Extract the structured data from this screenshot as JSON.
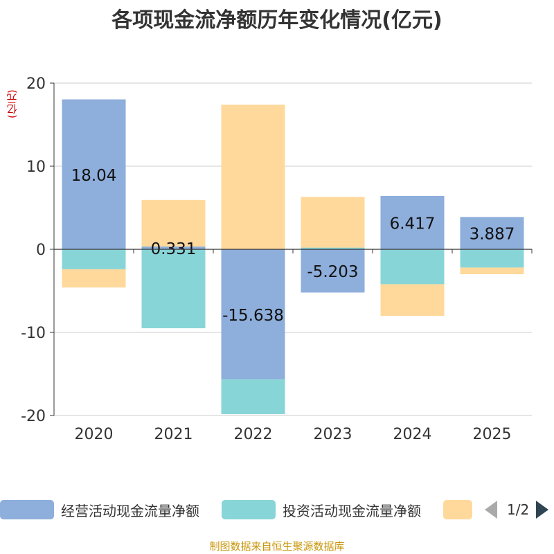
{
  "chart_data": {
    "type": "bar",
    "stacked": true,
    "title": "各项现金流净额历年变化情况(亿元)",
    "ylabel": "(亿元)",
    "ylim": [
      -20,
      20
    ],
    "yticks": [
      -20,
      -10,
      0,
      10,
      20
    ],
    "grid": true,
    "legend_position": "bottom",
    "categories": [
      "2020",
      "2021",
      "2022",
      "2023",
      "2024",
      "2025"
    ],
    "series": [
      {
        "name": "经营活动现金流量净额",
        "color": "#8eaedb",
        "values": [
          18.04,
          0.331,
          -15.638,
          -5.203,
          6.417,
          3.887
        ],
        "labels": [
          "18.04",
          "0.331",
          "-15.638",
          "-5.203",
          "6.417",
          "3.887"
        ]
      },
      {
        "name": "投资活动现金流量净额",
        "color": "#88d5d8",
        "values": [
          -2.4,
          -9.5,
          -4.2,
          0.2,
          -4.2,
          -2.2
        ],
        "labels": []
      },
      {
        "name": "",
        "color": "#ffd99b",
        "values": [
          -2.2,
          5.6,
          17.4,
          6.1,
          -3.8,
          -0.8
        ],
        "labels": []
      }
    ]
  },
  "legend": {
    "items": [
      "经营活动现金流量净额",
      "投资活动现金流量净额",
      ""
    ],
    "page": "1/2"
  },
  "source": "制图数据来自恒生聚源数据库"
}
